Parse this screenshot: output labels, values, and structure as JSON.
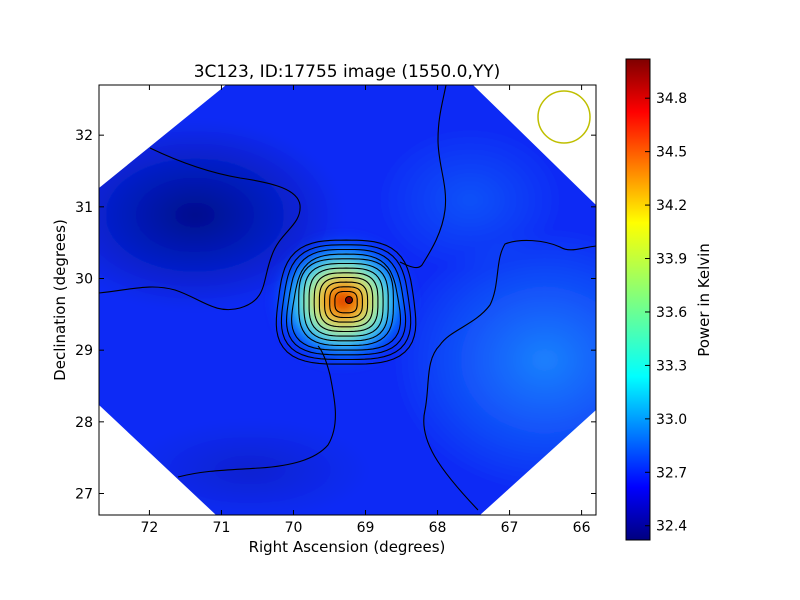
{
  "chart_data": {
    "type": "heatmap",
    "title": "3C123, ID:17755 image (1550.0,YY)",
    "xlabel": "Right Ascension (degrees)",
    "ylabel": "Declination (degrees)",
    "colorbar_label": "Power in Kelvin",
    "xlim": [
      72.7,
      65.8
    ],
    "ylim": [
      26.7,
      32.7
    ],
    "x_ticks": [
      72,
      71,
      70,
      69,
      68,
      67,
      66
    ],
    "y_ticks": [
      27,
      28,
      29,
      30,
      31,
      32
    ],
    "colorbar_range": [
      32.32,
      35.02
    ],
    "colorbar_ticks": [
      "32.4",
      "32.7",
      "33.0",
      "33.3",
      "33.6",
      "33.9",
      "34.2",
      "34.5",
      "34.8"
    ],
    "colormap": "jet",
    "grid": false,
    "source": {
      "ra": 69.27,
      "dec": 29.67,
      "peak": 35.0
    },
    "background": {
      "min": 32.42,
      "max": 32.95,
      "brightest_region": "lower-right",
      "darkest_region": "upper-left"
    },
    "contour_levels": 12,
    "beam_marker": {
      "ra": 66.25,
      "dec": 32.22,
      "color": "#bfbf00"
    }
  }
}
